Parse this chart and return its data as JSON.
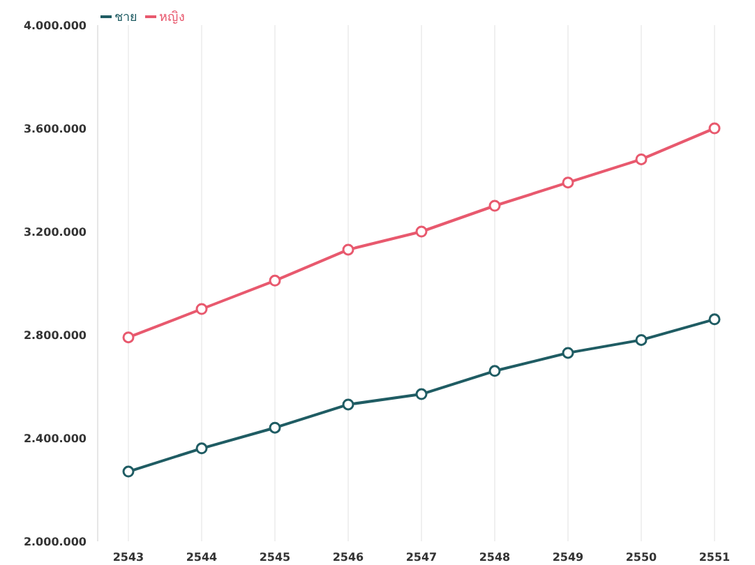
{
  "chart_data": {
    "type": "line",
    "categories": [
      "2543",
      "2544",
      "2545",
      "2546",
      "2547",
      "2548",
      "2549",
      "2550",
      "2551"
    ],
    "series": [
      {
        "name": "ชาย",
        "color": "#1f5c63",
        "values": [
          2270000,
          2360000,
          2440000,
          2530000,
          2570000,
          2660000,
          2730000,
          2780000,
          2860000
        ]
      },
      {
        "name": "หญิง",
        "color": "#e8596e",
        "values": [
          2790000,
          2900000,
          3010000,
          3130000,
          3200000,
          3300000,
          3390000,
          3480000,
          3600000
        ]
      }
    ],
    "ylim": [
      2000000,
      4000000
    ],
    "yticks": [
      {
        "value": 2000000,
        "label": "2.000.000"
      },
      {
        "value": 2400000,
        "label": "2.400.000"
      },
      {
        "value": 2800000,
        "label": "2.800.000"
      },
      {
        "value": 3200000,
        "label": "3.200.000"
      },
      {
        "value": 3600000,
        "label": "3.600.000"
      },
      {
        "value": 4000000,
        "label": "4.000.000"
      }
    ],
    "grid": "x",
    "legend": "top left",
    "marker": "circle",
    "line_style": "solid"
  }
}
